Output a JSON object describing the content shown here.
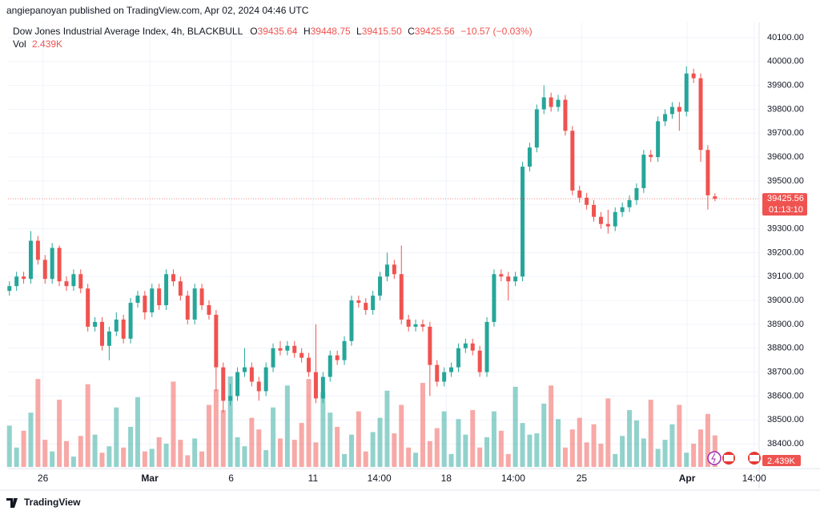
{
  "header": {
    "publisher": "angiepanoyan published on TradingView.com, Apr 02, 2024 04:46 UTC"
  },
  "chart_data": {
    "type": "candlestick",
    "title": "Dow Jones Industrial Average Index, 4h, BLACKBULL",
    "legend": {
      "o_label": "O",
      "o": "39435.64",
      "h_label": "H",
      "h": "39448.75",
      "l_label": "L",
      "l": "39415.50",
      "c_label": "C",
      "c": "39425.56",
      "change": "−10.57 (−0.03%)",
      "vol_label": "Vol",
      "vol": "2.439K"
    },
    "countdown": "01:13:10",
    "open": [
      39040,
      39060,
      39100,
      39090,
      39250,
      39170,
      39090,
      39220,
      39080,
      39060,
      39110,
      39050,
      38890,
      38910,
      38810,
      38870,
      38920,
      38840,
      38990,
      39020,
      38950,
      39050,
      38980,
      39110,
      39080,
      39020,
      38920,
      39050,
      38980,
      38940,
      38720,
      38580,
      38600,
      38700,
      38720,
      38660,
      38620,
      38720,
      38800,
      38790,
      38810,
      38780,
      38760,
      38700,
      38590,
      38680,
      38770,
      38750,
      38830,
      39000,
      38990,
      38960,
      39020,
      39100,
      39150,
      39110,
      38920,
      38890,
      38900,
      38890,
      38730,
      38660,
      38700,
      38720,
      38800,
      38820,
      38790,
      38700,
      38910,
      39110,
      39100,
      39080,
      39100,
      39560,
      39640,
      39800,
      39850,
      39810,
      39840,
      39710,
      39460,
      39430,
      39400,
      39350,
      39320,
      39310,
      39370,
      39390,
      39420,
      39470,
      39610,
      39600,
      39750,
      39780,
      39810,
      39790,
      39950,
      39930,
      39630,
      39435.64
    ],
    "high": [
      39080,
      39120,
      39120,
      39290,
      39270,
      39190,
      39240,
      39230,
      39100,
      39130,
      39130,
      39070,
      38930,
      38930,
      38890,
      38950,
      38940,
      39010,
      39040,
      39040,
      39070,
      39070,
      39130,
      39130,
      39100,
      39040,
      39070,
      39070,
      39000,
      38960,
      38740,
      38650,
      38720,
      38800,
      38740,
      38680,
      38740,
      38820,
      38830,
      38830,
      38830,
      38800,
      38780,
      38900,
      38700,
      38790,
      38790,
      38850,
      39020,
      39020,
      39010,
      39040,
      39120,
      39200,
      39170,
      39230,
      38940,
      38920,
      38920,
      38910,
      38750,
      38720,
      38740,
      38820,
      38840,
      38840,
      38810,
      38930,
      39130,
      39130,
      39120,
      39120,
      39580,
      39660,
      39820,
      39900,
      39870,
      39860,
      39860,
      39730,
      39480,
      39450,
      39420,
      39370,
      39380,
      39390,
      39410,
      39440,
      39490,
      39630,
      39630,
      39770,
      39800,
      39830,
      39830,
      39980,
      39970,
      39950,
      39650,
      39448.75
    ],
    "low": [
      39020,
      39040,
      39070,
      39070,
      39150,
      39070,
      39070,
      39060,
      39040,
      39040,
      39030,
      38870,
      38870,
      38790,
      38750,
      38850,
      38820,
      38820,
      38970,
      38920,
      38930,
      38960,
      38960,
      39060,
      39000,
      38900,
      38900,
      38960,
      38920,
      38620,
      38530,
      38560,
      38580,
      38680,
      38640,
      38580,
      38600,
      38700,
      38770,
      38770,
      38760,
      38740,
      38680,
      38570,
      38570,
      38660,
      38730,
      38730,
      38810,
      38970,
      38940,
      38940,
      39000,
      39080,
      39090,
      38900,
      38870,
      38870,
      38870,
      38600,
      38640,
      38640,
      38680,
      38700,
      38780,
      38770,
      38680,
      38680,
      38890,
      39080,
      39000,
      39060,
      39080,
      39540,
      39620,
      39780,
      39790,
      39790,
      39690,
      39440,
      39410,
      39380,
      39330,
      39300,
      39280,
      39290,
      39350,
      39370,
      39400,
      39450,
      39580,
      39580,
      39730,
      39760,
      39710,
      39770,
      39910,
      39580,
      39380,
      39415.5
    ],
    "close": [
      39060,
      39100,
      39090,
      39250,
      39170,
      39090,
      39220,
      39080,
      39060,
      39110,
      39050,
      38890,
      38910,
      38810,
      38870,
      38920,
      38840,
      38990,
      39020,
      38950,
      39050,
      38980,
      39110,
      39080,
      39020,
      38920,
      39050,
      38980,
      38940,
      38720,
      38580,
      38600,
      38700,
      38720,
      38660,
      38620,
      38720,
      38800,
      38790,
      38810,
      38780,
      38760,
      38700,
      38590,
      38680,
      38770,
      38750,
      38830,
      39000,
      38990,
      38960,
      39020,
      39100,
      39150,
      39110,
      38920,
      38890,
      38900,
      38890,
      38730,
      38660,
      38700,
      38720,
      38800,
      38820,
      38790,
      38700,
      38910,
      39110,
      39100,
      39080,
      39100,
      39560,
      39640,
      39800,
      39850,
      39810,
      39840,
      39710,
      39460,
      39430,
      39400,
      39350,
      39320,
      39310,
      39370,
      39390,
      39420,
      39470,
      39610,
      39600,
      39750,
      39780,
      39810,
      39790,
      39950,
      39930,
      39630,
      39440,
      39425.56
    ],
    "volume": [
      3200,
      1500,
      2800,
      4200,
      6800,
      2100,
      1200,
      5200,
      2000,
      800,
      2400,
      6400,
      2500,
      1100,
      1600,
      4600,
      1500,
      3100,
      5400,
      1200,
      1400,
      2300,
      1800,
      6600,
      2100,
      900,
      2200,
      1200,
      4800,
      6000,
      4400,
      7000,
      2300,
      1600,
      3800,
      2900,
      1300,
      4600,
      2200,
      6300,
      2100,
      3400,
      6800,
      1900,
      5800,
      4200,
      3100,
      1000,
      2500,
      4300,
      1200,
      2700,
      3800,
      5900,
      2600,
      4800,
      1500,
      1100,
      6500,
      2000,
      3000,
      4300,
      1000,
      3700,
      2500,
      4400,
      1500,
      2300,
      4300,
      2800,
      1000,
      6200,
      3400,
      2500,
      2600,
      4900,
      6300,
      3700,
      1500,
      2900,
      3800,
      1900,
      3300,
      1800,
      5300,
      1000,
      2400,
      4400,
      3600,
      2200,
      5200,
      1400,
      2100,
      3300,
      4800,
      1100,
      1800,
      2900,
      4100,
      2439
    ],
    "up_color": "#26a69a",
    "down_color": "#ef5350",
    "grid": true,
    "xlim": [
      -0.2,
      105.2
    ],
    "xticks": [
      {
        "value": 4.7,
        "label": "26"
      },
      {
        "value": 19.7,
        "label": "Mar"
      },
      {
        "value": 31.1,
        "label": "6"
      },
      {
        "value": 42.6,
        "label": "11"
      },
      {
        "value": 51.9,
        "label": "14:00"
      },
      {
        "value": 61.3,
        "label": "18"
      },
      {
        "value": 70.7,
        "label": "14:00"
      },
      {
        "value": 80.3,
        "label": "25"
      },
      {
        "value": 95.1,
        "label": "Apr"
      },
      {
        "value": 104.5,
        "label": "14:00"
      }
    ],
    "ylim": [
      38303,
      40157
    ],
    "yticks": [
      {
        "value": 38400,
        "label": "38400.00"
      },
      {
        "value": 38500,
        "label": "38500.00"
      },
      {
        "value": 38600,
        "label": "38600.00"
      },
      {
        "value": 38700,
        "label": "38700.00"
      },
      {
        "value": 38800,
        "label": "38800.00"
      },
      {
        "value": 38900,
        "label": "38900.00"
      },
      {
        "value": 39000,
        "label": "39000.00"
      },
      {
        "value": 39100,
        "label": "39100.00"
      },
      {
        "value": 39200,
        "label": "39200.00"
      },
      {
        "value": 39300,
        "label": "39300.00"
      },
      {
        "value": 39400,
        "label": "39400.00"
      },
      {
        "value": 39500,
        "label": "39500.00"
      },
      {
        "value": 39600,
        "label": "39600.00"
      },
      {
        "value": 39700,
        "label": "39700.00"
      },
      {
        "value": 39800,
        "label": "39800.00"
      },
      {
        "value": 39900,
        "label": "39900.00"
      },
      {
        "value": 40000,
        "label": "40000.00"
      },
      {
        "value": 40100,
        "label": "40100.00"
      }
    ]
  },
  "footer": {
    "brand": "TradingView"
  }
}
